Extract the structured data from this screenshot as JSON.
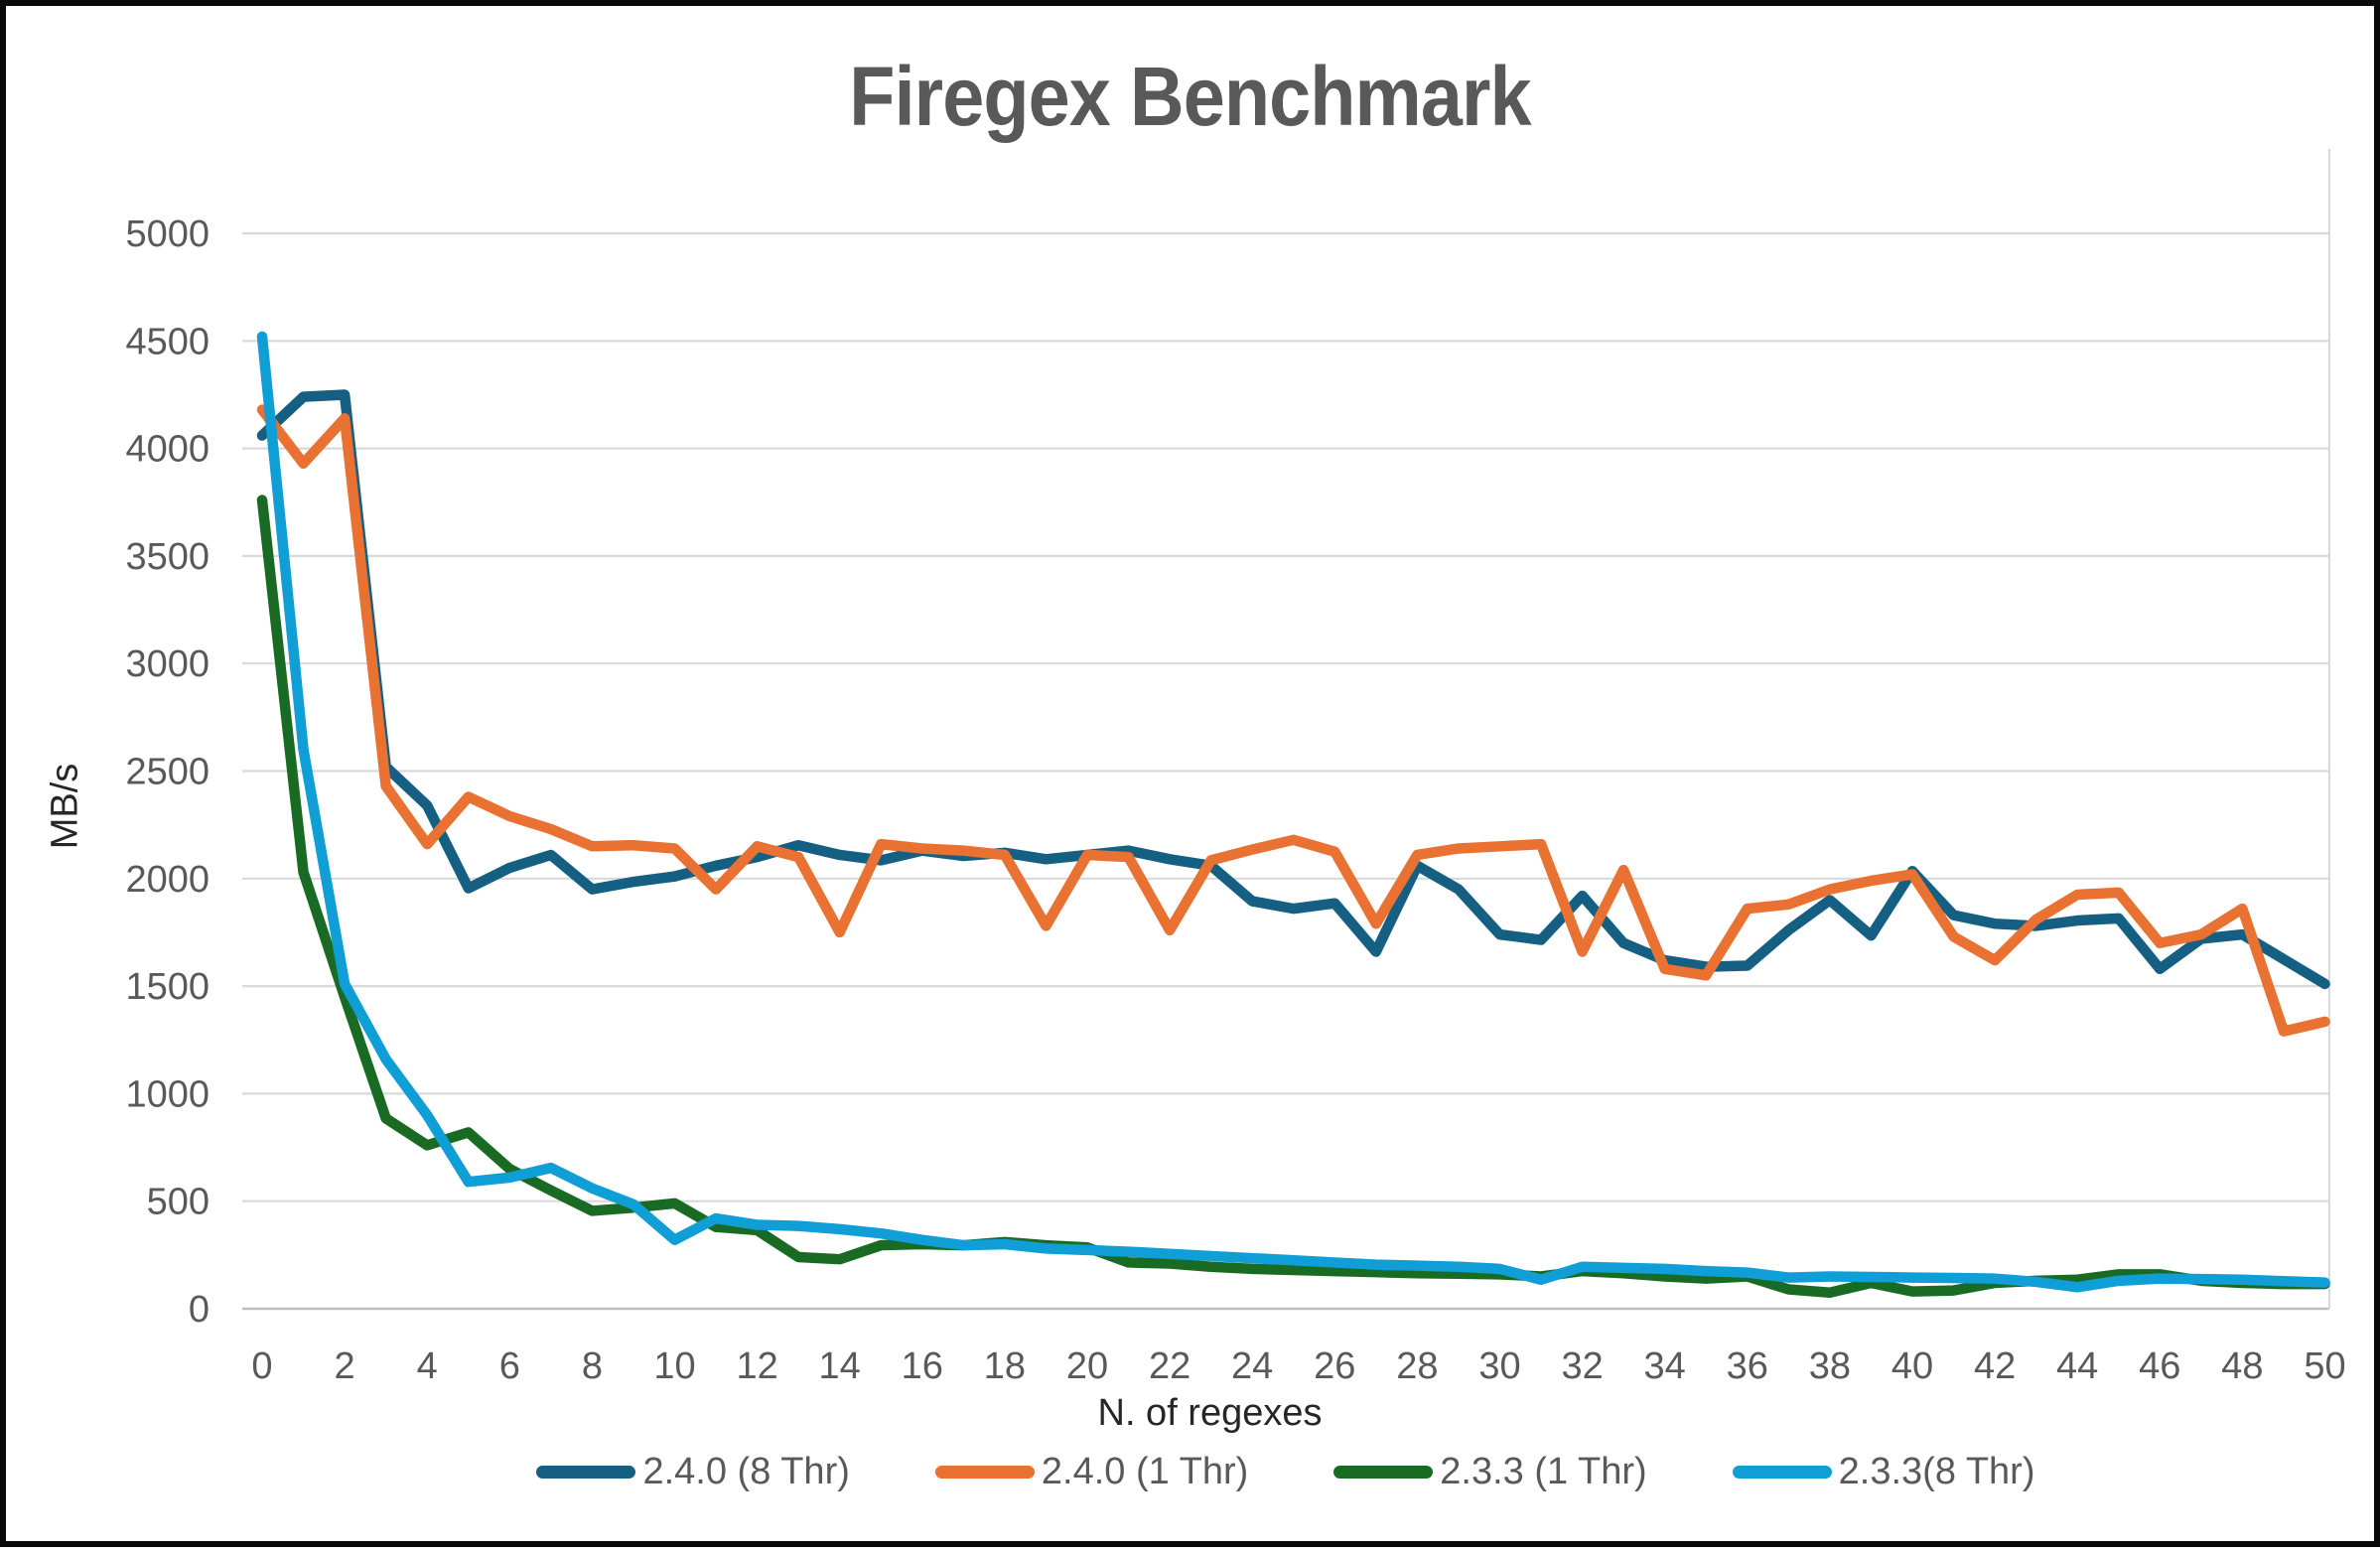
{
  "title": "Firegex Benchmark",
  "colors": {
    "title": "#595959",
    "tick_label": "#595959",
    "axis_title": "#262626",
    "legend_label": "#595959",
    "gridline": "#D9D9D9",
    "axis_line": "#BFBFBF",
    "plot_right_border": "#D9D9D9",
    "frame": "#0a0a0a",
    "background": "#FFFFFF"
  },
  "chart_data": {
    "type": "line",
    "title": "Firegex Benchmark",
    "xlabel": "N. of regexes",
    "ylabel": "MB/s",
    "xlim": [
      0,
      50
    ],
    "ylim": [
      0,
      5000
    ],
    "xticks": [
      0,
      2,
      4,
      6,
      8,
      10,
      12,
      14,
      16,
      18,
      20,
      22,
      24,
      26,
      28,
      30,
      32,
      34,
      36,
      38,
      40,
      42,
      44,
      46,
      48,
      50
    ],
    "yticks": [
      0,
      500,
      1000,
      1500,
      2000,
      2500,
      3000,
      3500,
      4000,
      4500,
      5000
    ],
    "grid": "horizontal",
    "legend_position": "bottom",
    "markers": false,
    "x": [
      0,
      1,
      2,
      3,
      4,
      5,
      6,
      7,
      8,
      9,
      10,
      11,
      12,
      13,
      14,
      15,
      16,
      17,
      18,
      19,
      20,
      21,
      22,
      23,
      24,
      25,
      26,
      27,
      28,
      29,
      30,
      31,
      32,
      33,
      34,
      35,
      36,
      37,
      38,
      39,
      40,
      41,
      42,
      43,
      44,
      45,
      46,
      47,
      48,
      49,
      50
    ],
    "series": [
      {
        "name": "2.4.0 (8 Thr)",
        "color": "#156082",
        "values": [
          4060,
          4240,
          4250,
          2520,
          2340,
          1955,
          2050,
          2110,
          1950,
          1985,
          2010,
          2060,
          2100,
          2155,
          2110,
          2085,
          2130,
          2105,
          2120,
          2090,
          2110,
          2130,
          2090,
          2060,
          1895,
          1860,
          1885,
          1660,
          2060,
          1950,
          1740,
          1715,
          1920,
          1700,
          1620,
          1590,
          1595,
          1760,
          1900,
          1735,
          2035,
          1830,
          1790,
          1780,
          1805,
          1815,
          1580,
          1720,
          1740,
          1625,
          1510
        ]
      },
      {
        "name": "2.4.0 (1 Thr)",
        "color": "#E97132",
        "values": [
          4180,
          3930,
          4140,
          2430,
          2160,
          2380,
          2290,
          2230,
          2150,
          2155,
          2140,
          1950,
          2150,
          2100,
          1750,
          2160,
          2140,
          2130,
          2110,
          1780,
          2110,
          2100,
          1760,
          2085,
          2135,
          2180,
          2125,
          1790,
          2110,
          2140,
          2150,
          2160,
          1660,
          2040,
          1580,
          1550,
          1860,
          1880,
          1950,
          1990,
          2020,
          1730,
          1620,
          1810,
          1925,
          1935,
          1700,
          1740,
          1860,
          1290,
          1335
        ]
      },
      {
        "name": "2.3.3 (1 Thr)",
        "color": "#196B24",
        "values": [
          3760,
          2030,
          1450,
          885,
          760,
          820,
          650,
          550,
          455,
          470,
          490,
          380,
          365,
          240,
          230,
          295,
          300,
          295,
          310,
          295,
          285,
          215,
          210,
          195,
          185,
          180,
          175,
          170,
          165,
          163,
          160,
          150,
          175,
          165,
          150,
          140,
          150,
          90,
          75,
          120,
          80,
          85,
          120,
          130,
          135,
          160,
          160,
          130,
          120,
          115,
          115
        ]
      },
      {
        "name": "2.3.3(8 Thr)",
        "color": "#0F9ED5",
        "values": [
          4520,
          2600,
          1510,
          1160,
          900,
          590,
          610,
          655,
          560,
          485,
          320,
          420,
          390,
          385,
          370,
          350,
          320,
          295,
          300,
          280,
          273,
          265,
          255,
          245,
          235,
          225,
          215,
          205,
          200,
          195,
          185,
          135,
          195,
          190,
          185,
          175,
          168,
          145,
          150,
          148,
          145,
          143,
          140,
          125,
          100,
          130,
          140,
          138,
          135,
          128,
          122
        ]
      }
    ]
  }
}
